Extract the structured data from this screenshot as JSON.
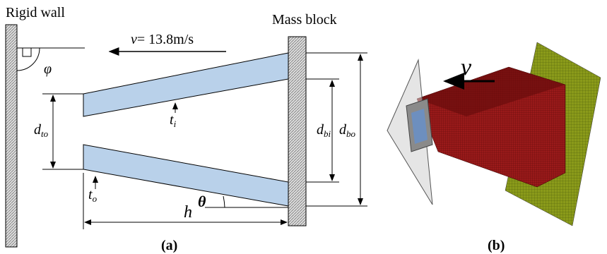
{
  "panel_a": {
    "rigid_wall": "Rigid wall",
    "mass_block": "Mass block",
    "velocity": {
      "symbol": "v",
      "text": "= 13.8m/s"
    },
    "phi": "φ",
    "d_top": {
      "symbol": "d",
      "subscript": "to"
    },
    "t_inner": {
      "symbol": "t",
      "subscript": "i"
    },
    "t_outer": {
      "symbol": "t",
      "subscript": "o"
    },
    "d_bottom_inner": {
      "symbol": "d",
      "subscript": "bi"
    },
    "d_bottom_outer": {
      "symbol": "d",
      "subscript": "bo"
    },
    "h": "h",
    "theta": "θ",
    "caption": "(a)"
  },
  "panel_b": {
    "velocity": "v",
    "caption": "(b)"
  }
}
